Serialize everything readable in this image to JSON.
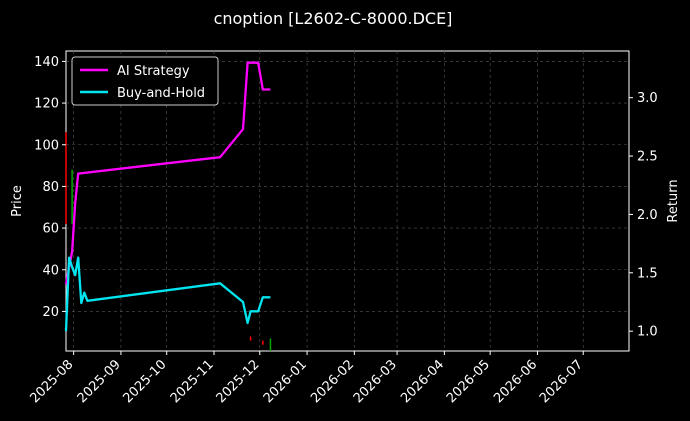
{
  "chart_data": {
    "type": "line",
    "title": "cnoption [L2602-C-8000.DCE]",
    "xlabel": "",
    "ylabel_left": "Price",
    "ylabel_right": "Return",
    "x_tick_labels": [
      "2025-08",
      "2025-09",
      "2025-10",
      "2025-11",
      "2025-12",
      "2026-01",
      "2026-02",
      "2026-03",
      "2026-04",
      "2026-05",
      "2026-06",
      "2026-07"
    ],
    "x_range": [
      "2025-07-27",
      "2026-07-31"
    ],
    "y_left": {
      "range": [
        1,
        145
      ],
      "ticks": [
        20,
        40,
        60,
        80,
        100,
        120,
        140
      ]
    },
    "y_right": {
      "range": [
        0.83,
        3.4
      ],
      "ticks": [
        "1.0",
        "1.5",
        "2.0",
        "2.5",
        "3.0"
      ]
    },
    "grid": true,
    "legend_position": "top-left",
    "series": [
      {
        "name": "AI Strategy",
        "axis": "right",
        "color": "#ff00ff",
        "points": [
          [
            "2025-07-27",
            1.4
          ],
          [
            "2025-07-29",
            1.55
          ],
          [
            "2025-07-31",
            1.68
          ],
          [
            "2025-08-02",
            2.1
          ],
          [
            "2025-08-04",
            2.35
          ],
          [
            "2025-11-05",
            2.49
          ],
          [
            "2025-11-20",
            2.73
          ],
          [
            "2025-11-23",
            3.3
          ],
          [
            "2025-11-30",
            3.3
          ],
          [
            "2025-12-03",
            3.07
          ],
          [
            "2025-12-08",
            3.07
          ]
        ]
      },
      {
        "name": "Buy-and-Hold",
        "axis": "right",
        "color": "#00e5f0",
        "points": [
          [
            "2025-07-27",
            1.0
          ],
          [
            "2025-07-29",
            1.63
          ],
          [
            "2025-07-31",
            1.55
          ],
          [
            "2025-08-02",
            1.48
          ],
          [
            "2025-08-04",
            1.63
          ],
          [
            "2025-08-06",
            1.24
          ],
          [
            "2025-08-08",
            1.33
          ],
          [
            "2025-08-10",
            1.26
          ],
          [
            "2025-11-05",
            1.41
          ],
          [
            "2025-11-20",
            1.25
          ],
          [
            "2025-11-23",
            1.07
          ],
          [
            "2025-11-25",
            1.17
          ],
          [
            "2025-11-30",
            1.17
          ],
          [
            "2025-12-03",
            1.29
          ],
          [
            "2025-12-08",
            1.29
          ]
        ]
      }
    ],
    "price_bars": [
      {
        "date": "2025-07-27",
        "low": 62,
        "high": 106,
        "color": "#ff0000"
      },
      {
        "date": "2025-07-31",
        "low": 62,
        "high": 88,
        "color": "#00aa00"
      },
      {
        "date": "2025-11-25",
        "low": 6,
        "high": 8,
        "color": "#ff0000"
      },
      {
        "date": "2025-12-03",
        "low": 4,
        "high": 6,
        "color": "#ff0000"
      },
      {
        "date": "2025-12-08",
        "low": 1,
        "high": 7,
        "color": "#00aa00"
      }
    ]
  }
}
